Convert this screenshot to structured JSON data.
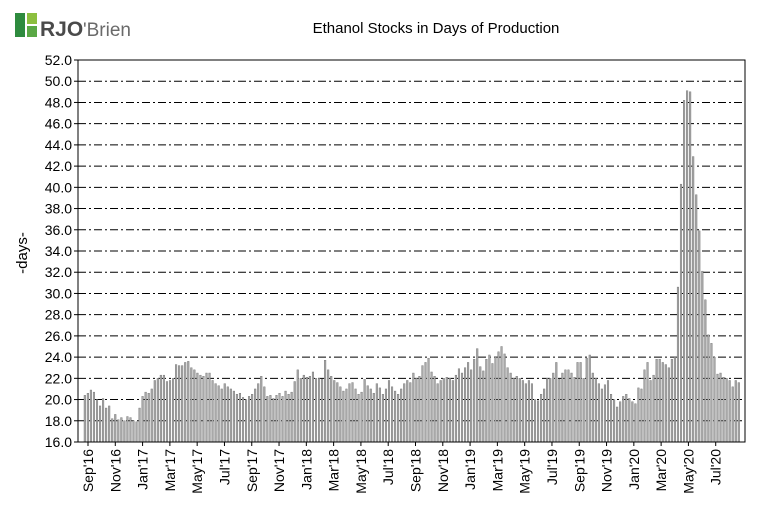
{
  "brand": {
    "name_a": "RJO",
    "name_b": "'Brien",
    "mark_colors": [
      "#2e8b3e",
      "#8cbf3f",
      "#5aa845"
    ]
  },
  "chart_data": {
    "type": "bar",
    "title": "Ethanol Stocks in Days of Production",
    "ylabel": "-days-",
    "xlabel": "",
    "ylim": [
      16.0,
      52.0
    ],
    "yticks": [
      16.0,
      18.0,
      20.0,
      22.0,
      24.0,
      26.0,
      28.0,
      30.0,
      32.0,
      34.0,
      36.0,
      38.0,
      40.0,
      42.0,
      44.0,
      46.0,
      48.0,
      50.0,
      52.0
    ],
    "ytick_labels": [
      "16.0",
      "18.0",
      "20.0",
      "22.0",
      "24.0",
      "26.0",
      "28.0",
      "30.0",
      "32.0",
      "34.0",
      "36.0",
      "38.0",
      "40.0",
      "42.0",
      "44.0",
      "46.0",
      "48.0",
      "50.0",
      "52.0"
    ],
    "x_labels": [
      "Sep'16",
      "Nov'16",
      "Jan'17",
      "Mar'17",
      "May'17",
      "Jul'17",
      "Sep'17",
      "Nov'17",
      "Jan'18",
      "Mar'18",
      "May'18",
      "Jul'18",
      "Sep'18",
      "Nov'18",
      "Jan'19",
      "Mar'19",
      "May'19",
      "Jul'19",
      "Sep'19",
      "Nov'19",
      "Jan'20",
      "Mar'20",
      "May'20",
      "Jul'20"
    ],
    "grid": true,
    "bar_color": "#a8a8a8",
    "series": [
      {
        "values": [
          20.4,
          20.6,
          20.9,
          20.7,
          20.0,
          19.4,
          20.1,
          19.2,
          19.4,
          18.2,
          18.6,
          18.1,
          18.3,
          18.0,
          18.4,
          18.3,
          18.0,
          17.9,
          19.2,
          20.3,
          20.7,
          20.6,
          21.0,
          21.8,
          22.0,
          22.3,
          22.3,
          21.7,
          21.8,
          22.0,
          23.3,
          23.2,
          23.2,
          23.5,
          23.6,
          23.0,
          22.8,
          22.5,
          22.3,
          22.2,
          22.5,
          22.5,
          21.8,
          21.5,
          21.3,
          21.0,
          21.5,
          21.2,
          21.0,
          20.8,
          20.5,
          20.6,
          20.2,
          20.0,
          20.3,
          20.5,
          21.0,
          21.5,
          22.2,
          21.2,
          20.3,
          20.4,
          20.1,
          20.4,
          20.6,
          20.3,
          20.8,
          20.5,
          20.7,
          21.7,
          22.8,
          22.0,
          22.3,
          22.1,
          22.2,
          22.6,
          22.0,
          22.0,
          21.9,
          23.7,
          22.8,
          22.2,
          21.8,
          21.6,
          21.2,
          20.8,
          21.0,
          21.5,
          21.6,
          21.0,
          20.5,
          20.7,
          21.9,
          21.3,
          21.0,
          20.6,
          21.5,
          21.1,
          20.5,
          21.0,
          21.8,
          21.2,
          20.8,
          20.5,
          21.0,
          21.5,
          21.8,
          21.6,
          22.5,
          22.0,
          22.2,
          23.2,
          23.5,
          23.9,
          22.6,
          22.2,
          21.5,
          21.8,
          22.0,
          22.1,
          22.0,
          21.8,
          22.3,
          22.9,
          22.5,
          23.0,
          23.5,
          22.8,
          23.8,
          24.8,
          23.1,
          22.7,
          23.8,
          24.2,
          23.4,
          24.0,
          24.5,
          25.0,
          24.3,
          23.0,
          22.5,
          22.0,
          22.2,
          22.0,
          21.8,
          21.5,
          21.8,
          21.5,
          20.0,
          19.9,
          20.5,
          21.0,
          22.0,
          22.0,
          22.5,
          23.5,
          21.9,
          22.5,
          22.8,
          22.8,
          22.5,
          22.1,
          23.5,
          23.5,
          22.0,
          23.9,
          24.2,
          22.5,
          22.0,
          21.5,
          21.0,
          21.4,
          21.8,
          20.5,
          20.0,
          19.3,
          19.8,
          20.3,
          20.5,
          20.1,
          19.8,
          19.6,
          21.1,
          21.0,
          22.8,
          23.5,
          21.8,
          22.3,
          23.8,
          23.8,
          23.5,
          23.3,
          23.0,
          23.8,
          24.0,
          30.6,
          40.3,
          48.2,
          49.1,
          49.0,
          42.9,
          39.3,
          35.9,
          32.1,
          29.4,
          26.1,
          25.3,
          24.0,
          22.4,
          22.5,
          22.1,
          22.0,
          21.8,
          21.2,
          21.8,
          21.6
        ]
      }
    ]
  }
}
